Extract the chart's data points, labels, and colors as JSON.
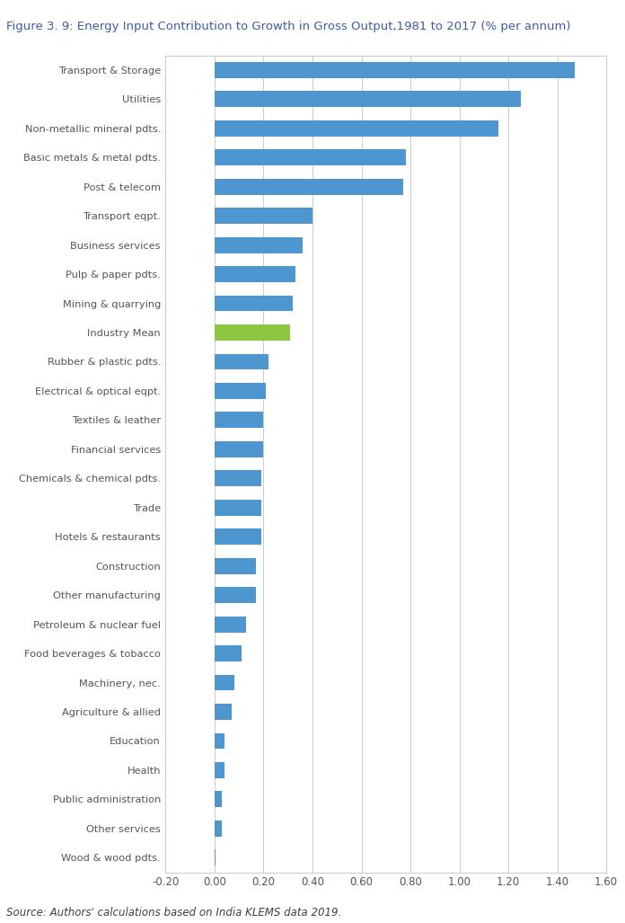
{
  "title": "Figure 3. 9: Energy Input Contribution to Growth in Gross Output,1981 to 2017 (% per annum)",
  "categories": [
    "Transport & Storage",
    "Utilities",
    "Non-metallic mineral pdts.",
    "Basic metals & metal pdts.",
    "Post & telecom",
    "Transport eqpt.",
    "Business services",
    "Pulp & paper pdts.",
    "Mining & quarrying",
    "Industry Mean",
    "Rubber & plastic pdts.",
    "Electrical & optical eqpt.",
    "Textiles & leather",
    "Financial services",
    "Chemicals & chemical pdts.",
    "Trade",
    "Hotels & restaurants",
    "Construction",
    "Other manufacturing",
    "Petroleum & nuclear fuel",
    "Food beverages & tobacco",
    "Machinery, nec.",
    "Agriculture & allied",
    "Education",
    "Health",
    "Public administration",
    "Other services",
    "Wood & wood pdts."
  ],
  "values": [
    1.47,
    1.25,
    1.16,
    0.78,
    0.77,
    0.4,
    0.36,
    0.33,
    0.32,
    0.31,
    0.22,
    0.21,
    0.2,
    0.2,
    0.19,
    0.19,
    0.19,
    0.17,
    0.17,
    0.13,
    0.11,
    0.08,
    0.07,
    0.04,
    0.04,
    0.03,
    0.03,
    0.005
  ],
  "bar_colors": [
    "#4d96d0",
    "#4d96d0",
    "#4d96d0",
    "#4d96d0",
    "#4d96d0",
    "#4d96d0",
    "#4d96d0",
    "#4d96d0",
    "#4d96d0",
    "#8dc63f",
    "#4d96d0",
    "#4d96d0",
    "#4d96d0",
    "#4d96d0",
    "#4d96d0",
    "#4d96d0",
    "#4d96d0",
    "#4d96d0",
    "#4d96d0",
    "#4d96d0",
    "#4d96d0",
    "#4d96d0",
    "#4d96d0",
    "#4d96d0",
    "#4d96d0",
    "#4d96d0",
    "#4d96d0",
    "#4d96d0"
  ],
  "xlim": [
    -0.2,
    1.6
  ],
  "xticks": [
    -0.2,
    0.0,
    0.2,
    0.4,
    0.6,
    0.8,
    1.0,
    1.2,
    1.4,
    1.6
  ],
  "source_text": "Source: Authors' calculations based on India KLEMS data 2019.",
  "title_color": "#3a5da8",
  "source_color": "#404040",
  "bar_height": 0.55,
  "background_color": "#ffffff",
  "grid_color": "#cccccc",
  "label_color": "#555555",
  "tick_color": "#555555",
  "title_fontsize": 9.5,
  "label_fontsize": 8.2,
  "tick_fontsize": 8.5,
  "source_fontsize": 8.5
}
